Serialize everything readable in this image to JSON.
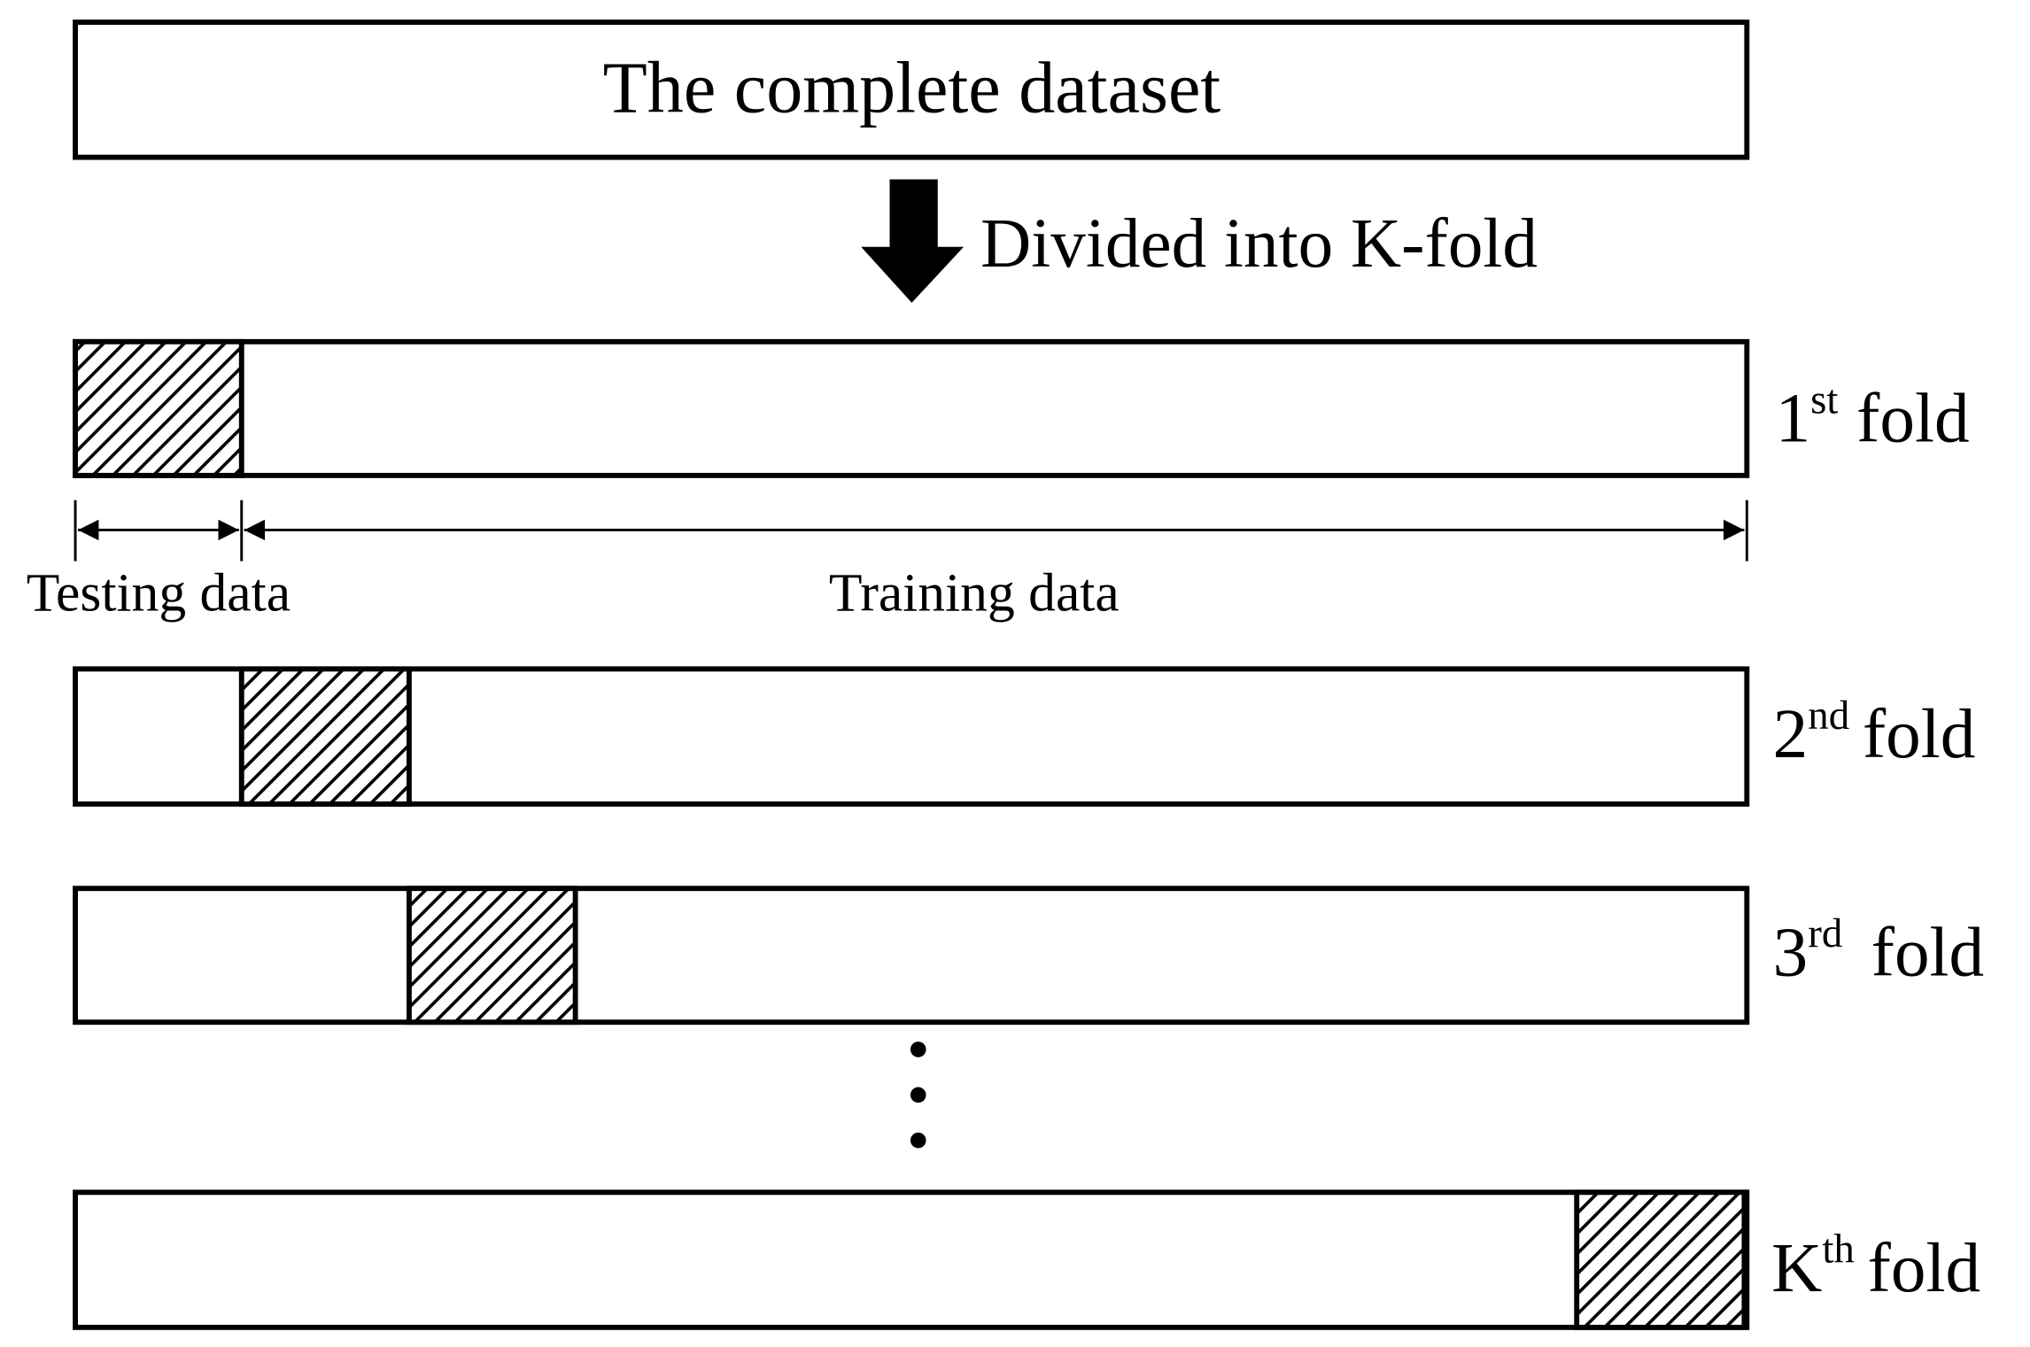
{
  "dataset": {
    "label": "The complete dataset"
  },
  "division": {
    "label": "Divided into K-fold"
  },
  "folds": [
    {
      "ordinal": "1",
      "suffix": "st",
      "label": "fold"
    },
    {
      "ordinal": "2",
      "suffix": "nd",
      "label": "fold"
    },
    {
      "ordinal": "3",
      "suffix": "rd",
      "label": "fold"
    },
    {
      "ordinal": "K",
      "suffix": "th",
      "label": "fold"
    }
  ],
  "split": {
    "testing": "Testing data",
    "training": "Training data"
  }
}
